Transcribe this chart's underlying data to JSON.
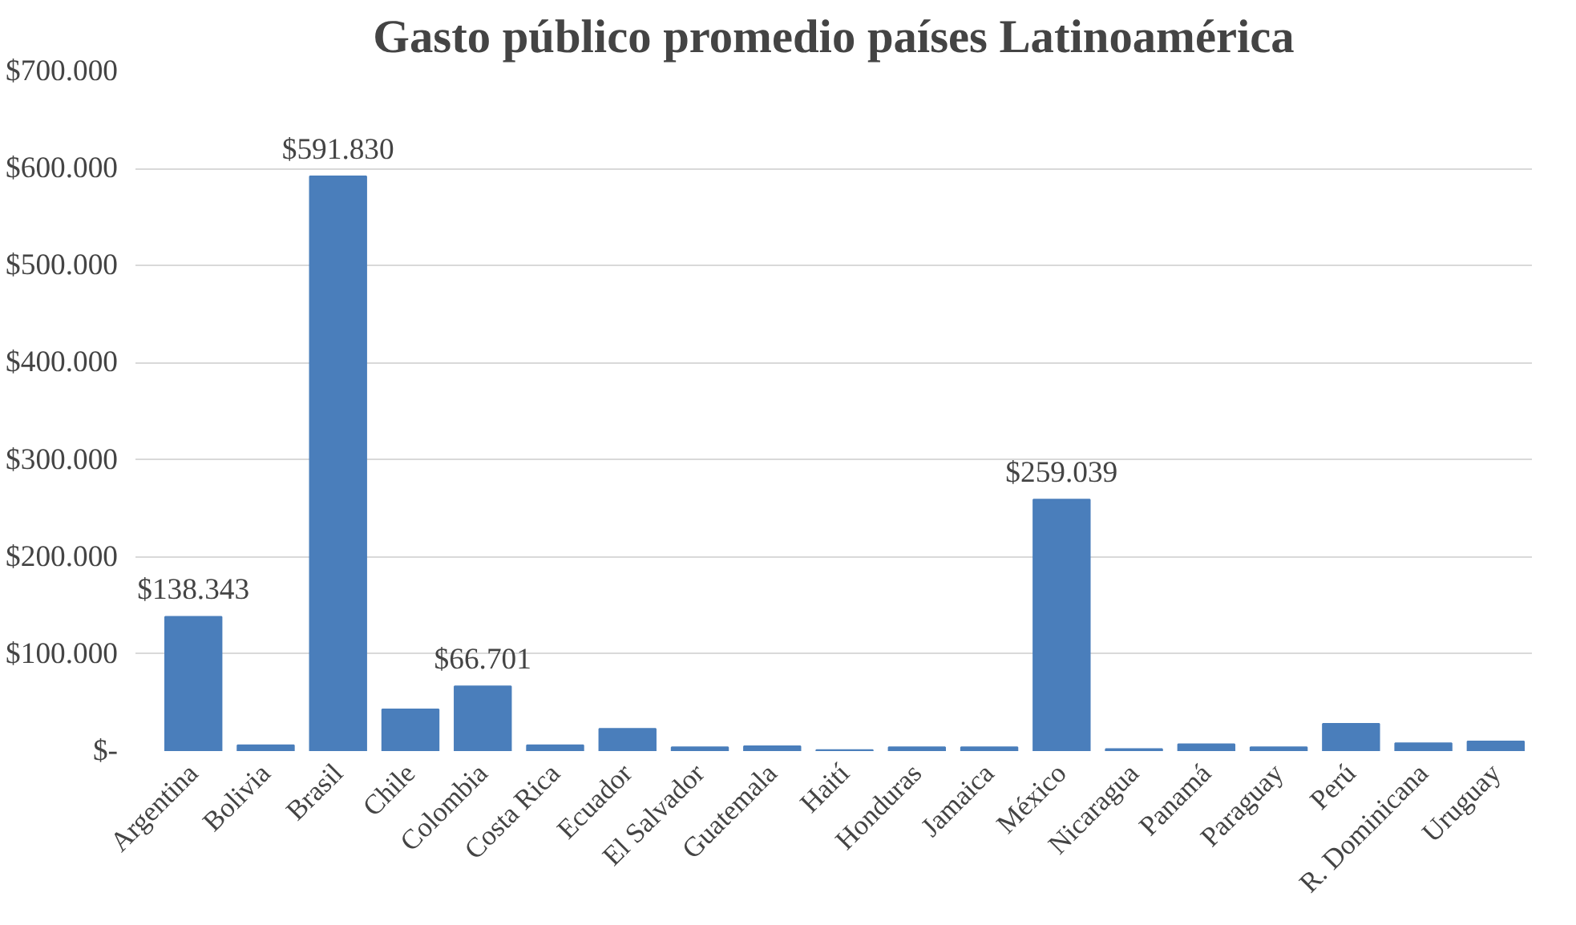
{
  "chart_data": {
    "type": "bar",
    "title": "Gasto público promedio países Latinoamérica",
    "categories": [
      "Argentina",
      "Bolivia",
      "Brasil",
      "Chile",
      "Colombia",
      "Costa Rica",
      "Ecuador",
      "El Salvador",
      "Guatemala",
      "Haití",
      "Honduras",
      "Jamaica",
      "México",
      "Nicaragua",
      "Panamá",
      "Paraguay",
      "Perú",
      "R. Dominicana",
      "Uruguay"
    ],
    "values": [
      138343,
      6000,
      591830,
      43000,
      66701,
      6000,
      23000,
      4000,
      5000,
      1000,
      4000,
      4000,
      259039,
      2000,
      7000,
      4000,
      28000,
      8000,
      10000
    ],
    "value_labels": [
      "$138.343",
      null,
      "$591.830",
      null,
      "$66.701",
      null,
      null,
      null,
      null,
      null,
      null,
      null,
      "$259.039",
      null,
      null,
      null,
      null,
      null,
      null
    ],
    "color": "#4a7ebb",
    "ylim": [
      0,
      700000
    ],
    "yticks": [
      {
        "value": 0,
        "label": "$-"
      },
      {
        "value": 100000,
        "label": "$100.000"
      },
      {
        "value": 200000,
        "label": "$200.000"
      },
      {
        "value": 300000,
        "label": "$300.000"
      },
      {
        "value": 400000,
        "label": "$400.000"
      },
      {
        "value": 500000,
        "label": "$500.000"
      },
      {
        "value": 600000,
        "label": "$600.000"
      },
      {
        "value": 700000,
        "label": "$700.000"
      }
    ],
    "grid": "y"
  }
}
